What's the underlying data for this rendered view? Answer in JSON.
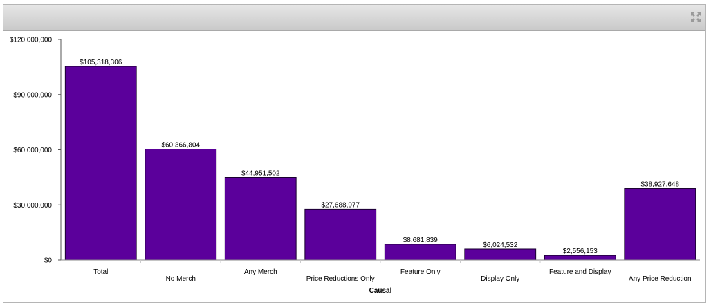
{
  "panel": {
    "expand_icon": "expand-arrows-icon"
  },
  "chart_data": {
    "type": "bar",
    "categories": [
      "Total",
      "No Merch",
      "Any Merch",
      "Price Reductions Only",
      "Feature Only",
      "Display Only",
      "Feature and Display",
      "Any Price Reduction"
    ],
    "values": [
      105318306,
      60366804,
      44951502,
      27688977,
      8681839,
      6024532,
      2556153,
      38927648
    ],
    "data_labels": [
      "$105,318,306",
      "$60,366,804",
      "$44,951,502",
      "$27,688,977",
      "$8,681,839",
      "$6,024,532",
      "$2,556,153",
      "$38,927,648"
    ],
    "xlabel": "Causal",
    "ylabel": "",
    "ylim": [
      0,
      120000000
    ],
    "y_ticks": [
      0,
      30000000,
      60000000,
      90000000,
      120000000
    ],
    "y_tick_labels": [
      "$0",
      "$30,000,000",
      "$60,000,000",
      "$90,000,000",
      "$120,000,000"
    ],
    "bar_color": "#5b009b",
    "grid": false,
    "legend": "none"
  }
}
